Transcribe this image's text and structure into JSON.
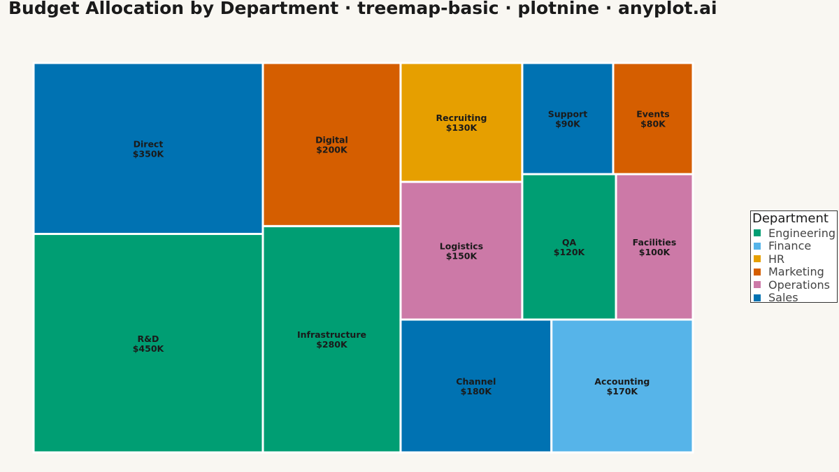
{
  "title": "Budget Allocation by Department · treemap-basic · plotnine · anyplot.ai",
  "legend": {
    "title": "Department",
    "items": [
      {
        "label": "Engineering",
        "color": "#009E73"
      },
      {
        "label": "Finance",
        "color": "#56B4E9"
      },
      {
        "label": "HR",
        "color": "#E69F00"
      },
      {
        "label": "Marketing",
        "color": "#D55E00"
      },
      {
        "label": "Operations",
        "color": "#CC79A7"
      },
      {
        "label": "Sales",
        "color": "#0072B2"
      }
    ]
  },
  "chart_data": {
    "type": "treemap",
    "title": "Budget Allocation by Department · treemap-basic · plotnine · anyplot.ai",
    "legend_title": "Department",
    "legend_position": "right",
    "grid": false,
    "items": [
      {
        "name": "R&D",
        "department": "Engineering",
        "value": 450,
        "label": "$450K"
      },
      {
        "name": "Direct",
        "department": "Sales",
        "value": 350,
        "label": "$350K"
      },
      {
        "name": "Infrastructure",
        "department": "Engineering",
        "value": 280,
        "label": "$280K"
      },
      {
        "name": "Digital",
        "department": "Marketing",
        "value": 200,
        "label": "$200K"
      },
      {
        "name": "Channel",
        "department": "Sales",
        "value": 180,
        "label": "$180K"
      },
      {
        "name": "Accounting",
        "department": "Finance",
        "value": 170,
        "label": "$170K"
      },
      {
        "name": "Logistics",
        "department": "Operations",
        "value": 150,
        "label": "$150K"
      },
      {
        "name": "Recruiting",
        "department": "HR",
        "value": 130,
        "label": "$130K"
      },
      {
        "name": "QA",
        "department": "Engineering",
        "value": 120,
        "label": "$120K"
      },
      {
        "name": "Facilities",
        "department": "Operations",
        "value": 100,
        "label": "$100K"
      },
      {
        "name": "Support",
        "department": "Sales",
        "value": 90,
        "label": "$90K"
      },
      {
        "name": "Events",
        "department": "Marketing",
        "value": 80,
        "label": "$80K"
      }
    ]
  }
}
